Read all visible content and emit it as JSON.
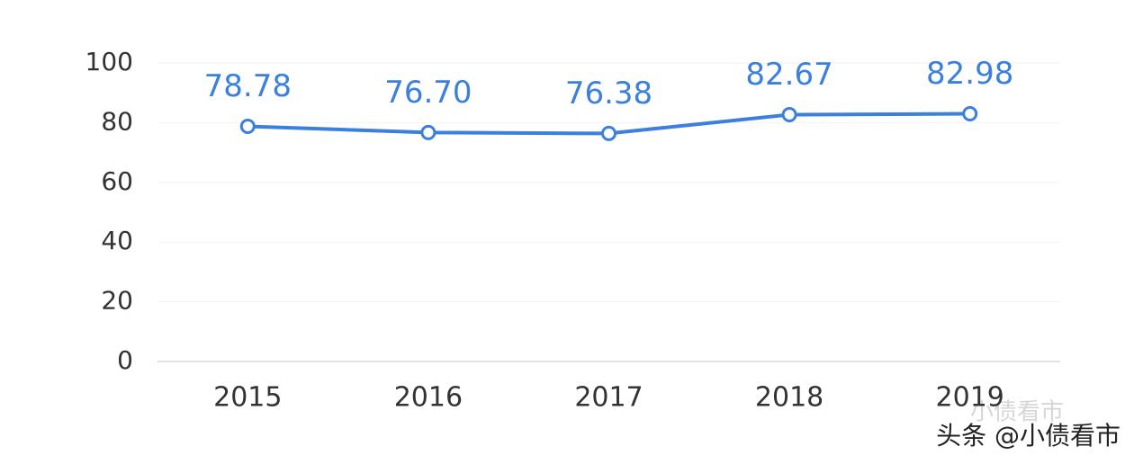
{
  "chart_data": {
    "type": "line",
    "categories": [
      "2015",
      "2016",
      "2017",
      "2018",
      "2019"
    ],
    "series": [
      {
        "color": "#3a80dc",
        "values": [
          78.78,
          76.7,
          76.38,
          82.67,
          82.98
        ],
        "value_labels": [
          "78.78",
          "76.70",
          "76.38",
          "82.67",
          "82.98"
        ]
      }
    ],
    "ylim": [
      0,
      100
    ],
    "yticks": [
      0,
      20,
      40,
      60,
      80,
      100
    ],
    "grid": true,
    "watermark": "头条 @小债看市",
    "watermark_faded": "小债看市"
  }
}
